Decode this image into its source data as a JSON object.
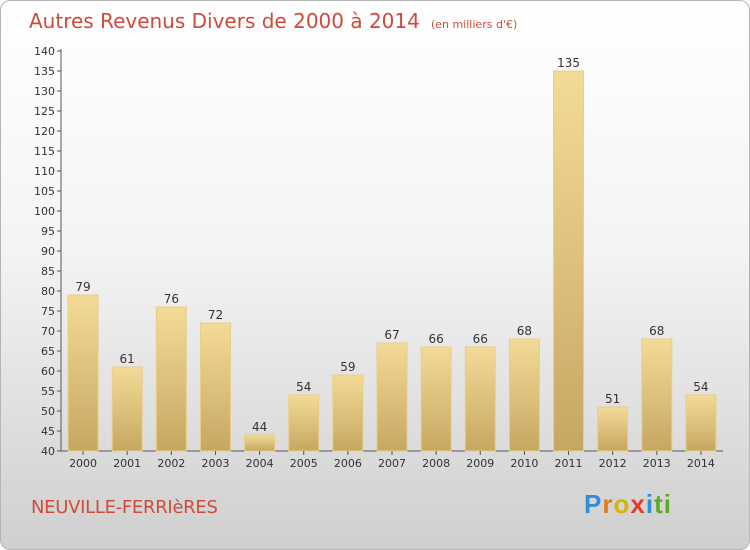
{
  "header": {
    "title": "Autres Revenus Divers de 2000 à 2014",
    "subtitle": "(en milliers d'€)"
  },
  "footer": {
    "commune": "NEUVILLE-FERRIèRES",
    "brand": [
      "P",
      "r",
      "o",
      "x",
      "i",
      "ti"
    ]
  },
  "colors": {
    "bar_light": "#f3db97",
    "bar_dark": "#c6a762",
    "title": "#d04a3a"
  },
  "chart_data": {
    "type": "bar",
    "title": "Autres Revenus Divers de 2000 à 2014",
    "subtitle": "(en milliers d'€)",
    "categories": [
      "2000",
      "2001",
      "2002",
      "2003",
      "2004",
      "2005",
      "2006",
      "2007",
      "2008",
      "2009",
      "2010",
      "2011",
      "2012",
      "2013",
      "2014"
    ],
    "values": [
      79,
      61,
      76,
      72,
      44,
      54,
      59,
      67,
      66,
      66,
      68,
      135,
      51,
      68,
      54
    ],
    "ylim": [
      40,
      140
    ],
    "yticks": [
      40,
      45,
      50,
      55,
      60,
      65,
      70,
      75,
      80,
      85,
      90,
      95,
      100,
      105,
      110,
      115,
      120,
      125,
      130,
      135,
      140
    ],
    "xlabel": "",
    "ylabel": "",
    "grid": false
  }
}
